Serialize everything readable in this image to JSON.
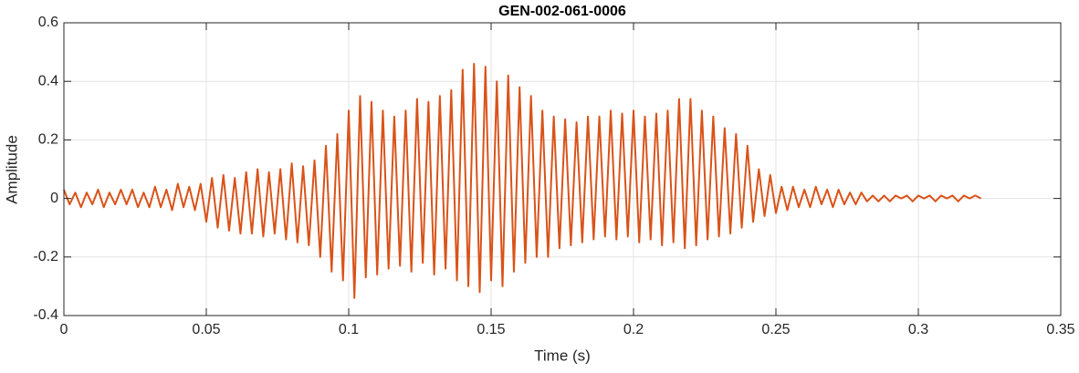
{
  "chart_data": {
    "type": "line",
    "title": "GEN-002-061-0006",
    "xlabel": "Time (s)",
    "ylabel": "Amplitude",
    "xlim": [
      0,
      0.35
    ],
    "ylim": [
      -0.4,
      0.6
    ],
    "xticks": [
      0,
      0.05,
      0.1,
      0.15,
      0.2,
      0.25,
      0.3,
      0.35
    ],
    "yticks": [
      -0.4,
      -0.2,
      0,
      0.2,
      0.4,
      0.6
    ],
    "grid": true,
    "color": "#d95319",
    "x": [
      0,
      0.002,
      0.004,
      0.006,
      0.008,
      0.01,
      0.012,
      0.014,
      0.016,
      0.018,
      0.02,
      0.022,
      0.024,
      0.026,
      0.028,
      0.03,
      0.032,
      0.034,
      0.036,
      0.038,
      0.04,
      0.042,
      0.044,
      0.046,
      0.048,
      0.05,
      0.052,
      0.054,
      0.056,
      0.058,
      0.06,
      0.062,
      0.064,
      0.066,
      0.068,
      0.07,
      0.072,
      0.074,
      0.076,
      0.078,
      0.08,
      0.082,
      0.084,
      0.086,
      0.088,
      0.09,
      0.092,
      0.094,
      0.096,
      0.098,
      0.1,
      0.102,
      0.104,
      0.106,
      0.108,
      0.11,
      0.112,
      0.114,
      0.116,
      0.118,
      0.12,
      0.122,
      0.124,
      0.126,
      0.128,
      0.13,
      0.132,
      0.134,
      0.136,
      0.138,
      0.14,
      0.142,
      0.144,
      0.146,
      0.148,
      0.15,
      0.152,
      0.154,
      0.156,
      0.158,
      0.16,
      0.162,
      0.164,
      0.166,
      0.168,
      0.17,
      0.172,
      0.174,
      0.176,
      0.178,
      0.18,
      0.182,
      0.184,
      0.186,
      0.188,
      0.19,
      0.192,
      0.194,
      0.196,
      0.198,
      0.2,
      0.202,
      0.204,
      0.206,
      0.208,
      0.21,
      0.212,
      0.214,
      0.216,
      0.218,
      0.22,
      0.222,
      0.224,
      0.226,
      0.228,
      0.23,
      0.232,
      0.234,
      0.236,
      0.238,
      0.24,
      0.242,
      0.244,
      0.246,
      0.248,
      0.25,
      0.252,
      0.254,
      0.256,
      0.258,
      0.26,
      0.262,
      0.264,
      0.266,
      0.268,
      0.27,
      0.272,
      0.274,
      0.276,
      0.278,
      0.28,
      0.282,
      0.284,
      0.286,
      0.288,
      0.29,
      0.292,
      0.294,
      0.296,
      0.298,
      0.3,
      0.302,
      0.304,
      0.306,
      0.308,
      0.31,
      0.312,
      0.314,
      0.316,
      0.318,
      0.32,
      0.322
    ],
    "values": [
      0.03,
      -0.02,
      0.02,
      -0.03,
      0.02,
      -0.02,
      0.03,
      -0.03,
      0.02,
      -0.02,
      0.03,
      -0.02,
      0.03,
      -0.03,
      0.02,
      -0.03,
      0.04,
      -0.03,
      0.03,
      -0.04,
      0.05,
      -0.03,
      0.04,
      -0.04,
      0.05,
      -0.08,
      0.07,
      -0.1,
      0.08,
      -0.11,
      0.07,
      -0.12,
      0.09,
      -0.12,
      0.1,
      -0.13,
      0.09,
      -0.12,
      0.1,
      -0.14,
      0.12,
      -0.15,
      0.11,
      -0.16,
      0.13,
      -0.2,
      0.18,
      -0.25,
      0.22,
      -0.28,
      0.3,
      -0.34,
      0.35,
      -0.27,
      0.33,
      -0.26,
      0.3,
      -0.24,
      0.28,
      -0.23,
      0.3,
      -0.25,
      0.34,
      -0.22,
      0.33,
      -0.26,
      0.35,
      -0.24,
      0.37,
      -0.28,
      0.44,
      -0.3,
      0.46,
      -0.32,
      0.45,
      -0.28,
      0.4,
      -0.3,
      0.42,
      -0.25,
      0.38,
      -0.22,
      0.35,
      -0.2,
      0.3,
      -0.2,
      0.28,
      -0.17,
      0.27,
      -0.16,
      0.26,
      -0.15,
      0.28,
      -0.14,
      0.28,
      -0.13,
      0.3,
      -0.14,
      0.29,
      -0.13,
      0.3,
      -0.15,
      0.28,
      -0.14,
      0.29,
      -0.16,
      0.3,
      -0.15,
      0.34,
      -0.17,
      0.34,
      -0.16,
      0.3,
      -0.14,
      0.28,
      -0.13,
      0.24,
      -0.12,
      0.22,
      -0.1,
      0.18,
      -0.08,
      0.1,
      -0.06,
      0.08,
      -0.05,
      0.04,
      -0.04,
      0.04,
      -0.03,
      0.03,
      -0.03,
      0.04,
      -0.02,
      0.03,
      -0.03,
      0.03,
      -0.02,
      0.02,
      -0.02,
      0.02,
      -0.01,
      0.01,
      -0.01,
      0.01,
      -0.01,
      0.01,
      0,
      0.01,
      -0.01,
      0.01,
      0,
      0.01,
      -0.01,
      0.01,
      0,
      0.01,
      -0.01,
      0.01,
      0,
      0.01,
      0
    ]
  }
}
